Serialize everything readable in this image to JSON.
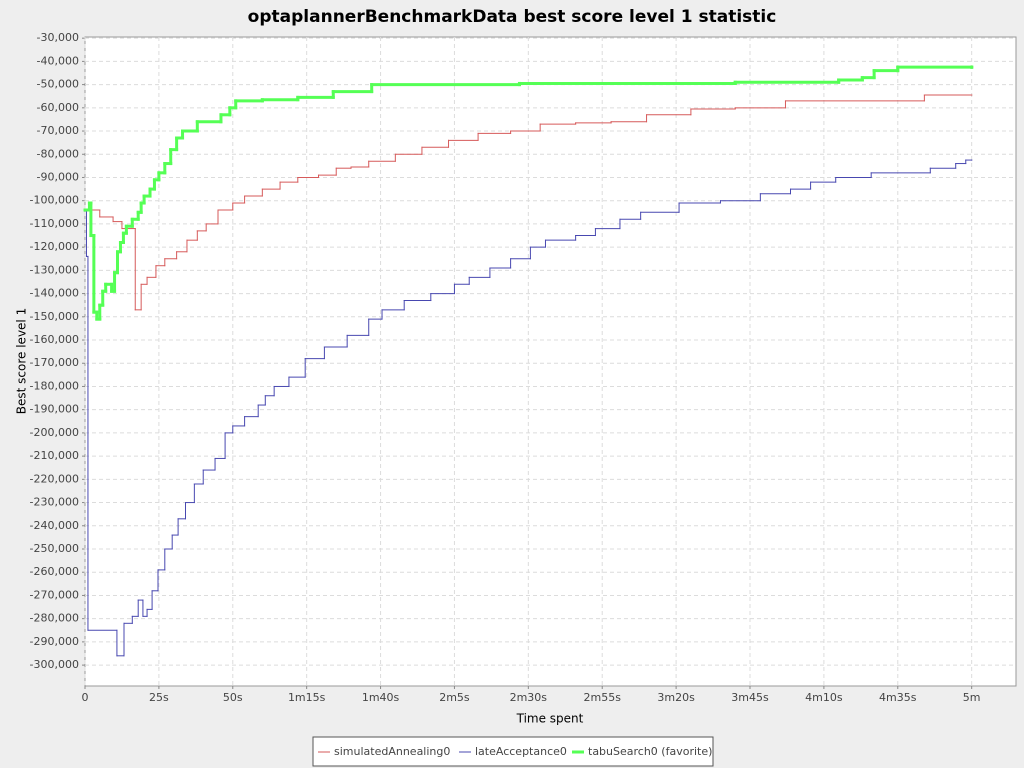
{
  "chart_data": {
    "type": "step-line",
    "title": "optaplannerBenchmarkData best score level 1 statistic",
    "x_label": "Time spent",
    "y_label": "Best score level 1",
    "xlim": [
      0,
      315
    ],
    "ylim": [
      -309000,
      -29500
    ],
    "xticks": [
      0,
      {
        "value": 25,
        "label": "25s"
      },
      {
        "value": 50,
        "label": "50s"
      },
      {
        "value": 75,
        "label": "1m15s"
      },
      {
        "value": 100,
        "label": "1m40s"
      },
      {
        "value": 125,
        "label": "2m5s"
      },
      {
        "value": 150,
        "label": "2m30s"
      },
      {
        "value": 175,
        "label": "2m55s"
      },
      {
        "value": 200,
        "label": "3m20s"
      },
      {
        "value": 225,
        "label": "3m45s"
      },
      {
        "value": 250,
        "label": "4m10s"
      },
      {
        "value": 275,
        "label": "4m35s"
      },
      {
        "value": 300,
        "label": "5m"
      }
    ],
    "yticks": [
      {
        "value": -30000,
        "label": "-30,000"
      },
      {
        "value": -40000,
        "label": "-40,000"
      },
      {
        "value": -50000,
        "label": "-50,000"
      },
      {
        "value": -60000,
        "label": "-60,000"
      },
      {
        "value": -70000,
        "label": "-70,000"
      },
      {
        "value": -80000,
        "label": "-80,000"
      },
      {
        "value": -90000,
        "label": "-90,000"
      },
      {
        "value": -100000,
        "label": "-100,000"
      },
      {
        "value": -110000,
        "label": "-110,000"
      },
      {
        "value": -120000,
        "label": "-120,000"
      },
      {
        "value": -130000,
        "label": "-130,000"
      },
      {
        "value": -140000,
        "label": "-140,000"
      },
      {
        "value": -150000,
        "label": "-150,000"
      },
      {
        "value": -160000,
        "label": "-160,000"
      },
      {
        "value": -170000,
        "label": "-170,000"
      },
      {
        "value": -180000,
        "label": "-180,000"
      },
      {
        "value": -190000,
        "label": "-190,000"
      },
      {
        "value": -200000,
        "label": "-200,000"
      },
      {
        "value": -210000,
        "label": "-210,000"
      },
      {
        "value": -220000,
        "label": "-220,000"
      },
      {
        "value": -230000,
        "label": "-230,000"
      },
      {
        "value": -240000,
        "label": "-240,000"
      },
      {
        "value": -250000,
        "label": "-250,000"
      },
      {
        "value": -260000,
        "label": "-260,000"
      },
      {
        "value": -270000,
        "label": "-270,000"
      },
      {
        "value": -280000,
        "label": "-280,000"
      },
      {
        "value": -290000,
        "label": "-290,000"
      },
      {
        "value": -300000,
        "label": "-300,000"
      }
    ],
    "grid": true,
    "legend": "bottom",
    "series": [
      {
        "name": "simulatedAnnealing0",
        "color": "#d65a5a",
        "width": 1,
        "x": [
          0,
          5,
          9.5,
          12.5,
          17,
          19,
          21,
          24,
          27,
          31,
          34.5,
          38,
          41,
          45,
          50,
          54,
          60,
          66,
          72,
          79,
          85,
          90,
          96,
          105,
          114,
          123,
          133,
          144,
          154,
          166,
          178,
          190,
          205,
          220,
          237,
          284,
          300
        ],
        "values": [
          -104000,
          -107000,
          -109000,
          -112000,
          -147000,
          -136000,
          -133000,
          -128000,
          -125000,
          -122000,
          -117000,
          -113000,
          -110000,
          -104000,
          -101000,
          -98000,
          -95000,
          -92000,
          -90000,
          -89000,
          -86000,
          -85500,
          -83000,
          -80000,
          -77000,
          -74000,
          -71000,
          -70000,
          -67000,
          -66500,
          -66000,
          -63000,
          -60500,
          -60000,
          -57000,
          -54500,
          -54500
        ]
      },
      {
        "name": "lateAcceptance0",
        "color": "#4848b0",
        "width": 1,
        "x": [
          0,
          0.5,
          1,
          10.8,
          13.2,
          16,
          18,
          19.6,
          21,
          22.7,
          24.7,
          27,
          29.5,
          31.5,
          34,
          37,
          40,
          44,
          47.4,
          50,
          54,
          58.6,
          61,
          64,
          69,
          74.5,
          81,
          88.7,
          96,
          100.5,
          108,
          117,
          125,
          130,
          137,
          144,
          150.7,
          155.8,
          166,
          172.7,
          181,
          188,
          201,
          215,
          228.5,
          238.7,
          245.5,
          254,
          266,
          286,
          294.6,
          298,
          300
        ],
        "values": [
          -104000,
          -124000,
          -285000,
          -296000,
          -282000,
          -279000,
          -272000,
          -279000,
          -276000,
          -268000,
          -259000,
          -250000,
          -244000,
          -237000,
          -230000,
          -222000,
          -216000,
          -211000,
          -200000,
          -197000,
          -193000,
          -188000,
          -184000,
          -180000,
          -176000,
          -168000,
          -163000,
          -158000,
          -151000,
          -147000,
          -143000,
          -140000,
          -136000,
          -133000,
          -129000,
          -125000,
          -120000,
          -117000,
          -115000,
          -112000,
          -108000,
          -105000,
          -101000,
          -100000,
          -97000,
          -95000,
          -92000,
          -90000,
          -88000,
          -86000,
          -84000,
          -82500,
          -82500
        ]
      },
      {
        "name": "tabuSearch0 (favorite)",
        "color": "#55ff55",
        "width": 3,
        "x": [
          0,
          1.5,
          2,
          3,
          4,
          5,
          6,
          7,
          9,
          10,
          11,
          12,
          13,
          14,
          16,
          18,
          19,
          20,
          22,
          23.5,
          25,
          27,
          29,
          31,
          33,
          38,
          46,
          49,
          51,
          60,
          72,
          84,
          97,
          147,
          220,
          255,
          263,
          267,
          275,
          300
        ],
        "values": [
          -104000,
          -101000,
          -115000,
          -148000,
          -151000,
          -145000,
          -139000,
          -136000,
          -139000,
          -131000,
          -122000,
          -118000,
          -114000,
          -111000,
          -108000,
          -105000,
          -101000,
          -98000,
          -95000,
          -91000,
          -88000,
          -84000,
          -78000,
          -73000,
          -70000,
          -66000,
          -63000,
          -60000,
          -57000,
          -56500,
          -55500,
          -53000,
          -50000,
          -49500,
          -49000,
          -48000,
          -47000,
          -44000,
          -42500,
          -42500
        ]
      }
    ]
  }
}
